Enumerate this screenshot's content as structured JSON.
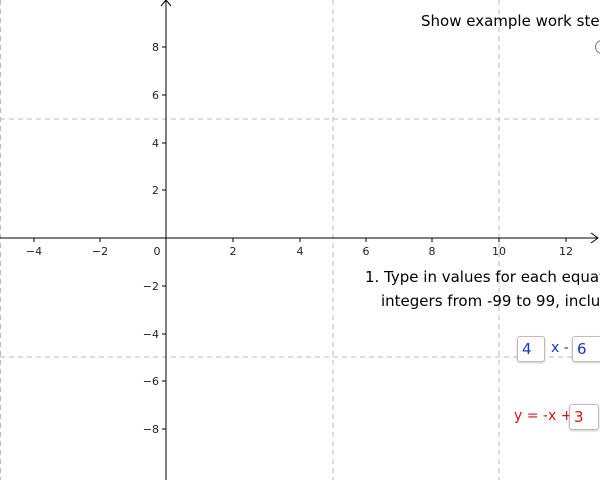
{
  "header": {
    "show_work_label": "Show example work step"
  },
  "graph": {
    "x_tick_labels": [
      "−4",
      "−2",
      "0",
      "2",
      "4",
      "6",
      "8",
      "10",
      "12"
    ],
    "y_tick_labels": [
      "8",
      "6",
      "4",
      "2",
      "−2",
      "−4",
      "−6",
      "−8"
    ],
    "axis_color": "#000000",
    "grid_color": "#bbbbbb"
  },
  "instructions": {
    "line1": "1. Type in values for each equatio",
    "line2": "integers from -99 to 99, inclusi"
  },
  "equation1": {
    "slope_value": "4",
    "operator_text": "x -",
    "intercept_value": "6",
    "color": "#1a35c8"
  },
  "equation2": {
    "prefix_text": "y = -x +",
    "intercept_value": "3",
    "color": "#e01010"
  }
}
